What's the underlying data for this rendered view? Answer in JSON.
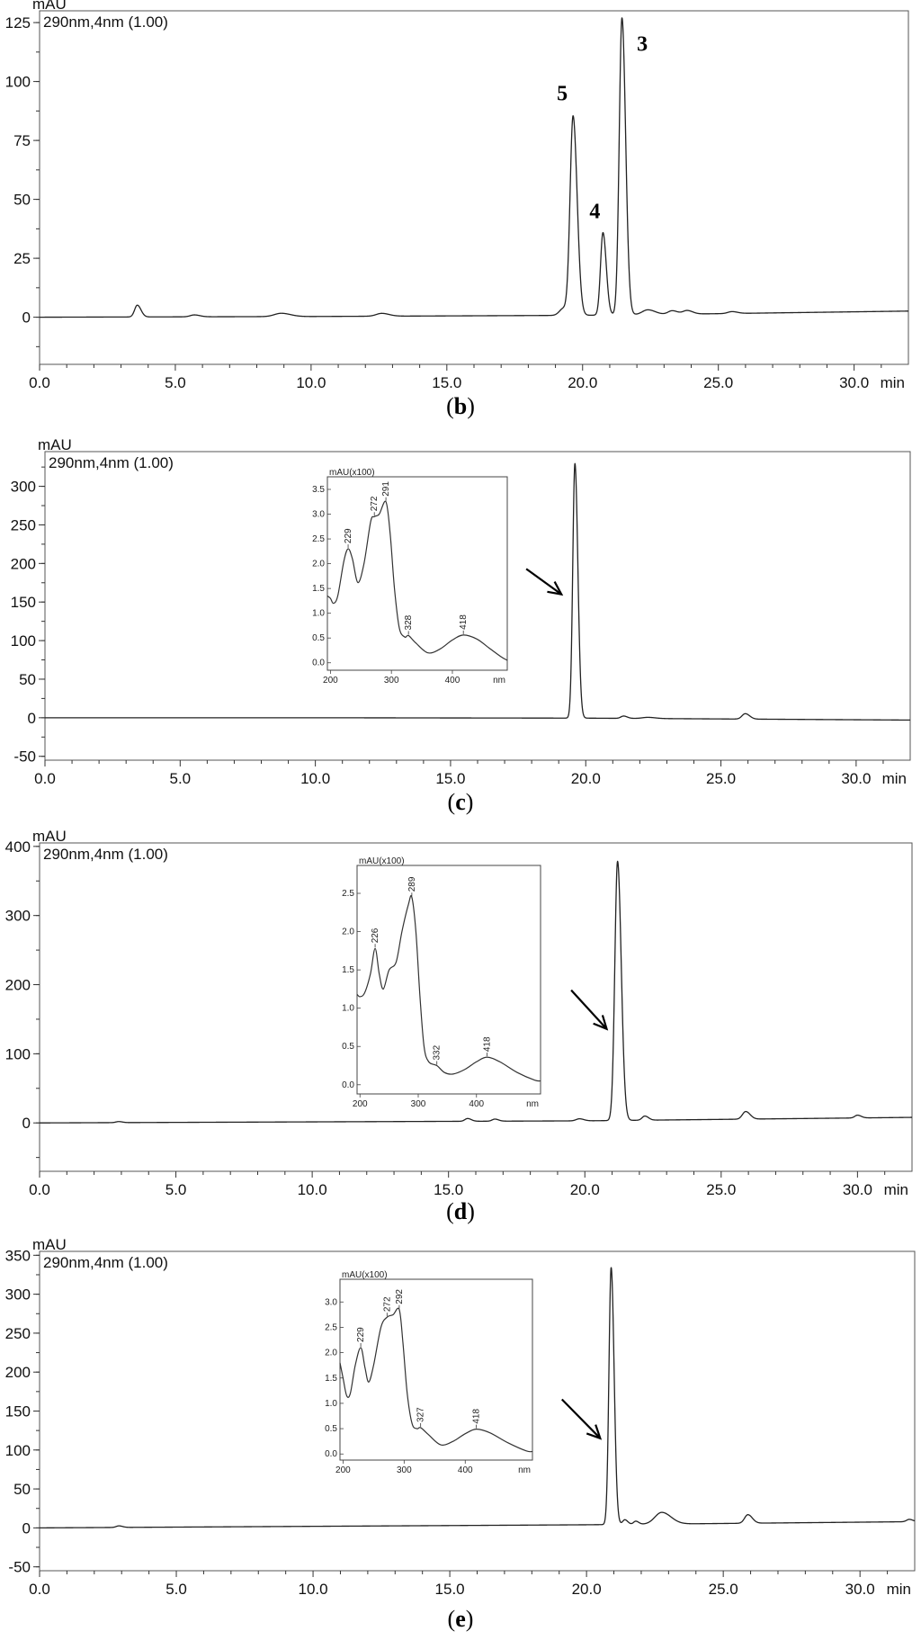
{
  "chart_data": [
    {
      "panel": "b",
      "type": "line",
      "y_unit": "mAU",
      "x_unit": "min",
      "channel": "290nm,4nm (1.00)",
      "xlim": [
        0,
        32
      ],
      "ylim": [
        -20,
        130
      ],
      "xticks": [
        "0.0",
        "5.0",
        "10.0",
        "15.0",
        "20.0",
        "25.0",
        "30.0"
      ],
      "yticks": [
        "0",
        "25",
        "50",
        "75",
        "100",
        "125"
      ],
      "baseline": [
        [
          0,
          0
        ],
        [
          10,
          0.3
        ],
        [
          20,
          0.8
        ],
        [
          25,
          1.5
        ],
        [
          32,
          2.6
        ]
      ],
      "peaks": [
        {
          "rt": 3.6,
          "height": 5,
          "width": 0.1
        },
        {
          "rt": 5.7,
          "height": 0.8,
          "width": 0.15
        },
        {
          "rt": 8.9,
          "height": 1.4,
          "width": 0.25
        },
        {
          "rt": 12.6,
          "height": 1.2,
          "width": 0.2
        },
        {
          "rt": 19.3,
          "height": 3,
          "width": 0.15
        },
        {
          "rt": 19.65,
          "height": 84,
          "width": 0.11
        },
        {
          "rt": 20.75,
          "height": 35,
          "width": 0.09
        },
        {
          "rt": 21.45,
          "height": 126,
          "width": 0.1
        },
        {
          "rt": 22.4,
          "height": 2,
          "width": 0.2
        },
        {
          "rt": 23.3,
          "height": 1.5,
          "width": 0.15
        },
        {
          "rt": 23.85,
          "height": 1.5,
          "width": 0.15
        },
        {
          "rt": 25.5,
          "height": 0.8,
          "width": 0.15
        }
      ],
      "peak_labels": [
        {
          "text": "5",
          "x": 19.25,
          "y": 92
        },
        {
          "text": "4",
          "x": 20.45,
          "y": 42
        },
        {
          "text": "3",
          "x": 22.2,
          "y": 113
        }
      ],
      "caption": "b",
      "arrow": null,
      "inset": null
    },
    {
      "panel": "c",
      "type": "line",
      "y_unit": "mAU",
      "x_unit": "min",
      "channel": "290nm,4nm (1.00)",
      "xlim": [
        0,
        32
      ],
      "ylim": [
        -55,
        345
      ],
      "xticks": [
        "0.0",
        "5.0",
        "10.0",
        "15.0",
        "20.0",
        "25.0",
        "30.0"
      ],
      "yticks": [
        "-50",
        "0",
        "50",
        "100",
        "150",
        "200",
        "250",
        "300"
      ],
      "baseline": [
        [
          0,
          0
        ],
        [
          10,
          0
        ],
        [
          20,
          -0.5
        ],
        [
          32,
          -3
        ]
      ],
      "peaks": [
        {
          "rt": 19.6,
          "height": 330,
          "width": 0.08
        },
        {
          "rt": 21.4,
          "height": 3,
          "width": 0.1
        },
        {
          "rt": 22.3,
          "height": 1.5,
          "width": 0.2
        },
        {
          "rt": 25.9,
          "height": 7,
          "width": 0.12
        }
      ],
      "peak_labels": [],
      "caption": "c",
      "arrow": {
        "tip": [
          19.1,
          160
        ],
        "tail": [
          17.8,
          193
        ]
      },
      "inset": {
        "y_label": "mAU(x100)",
        "x_unit": "nm",
        "xlim": [
          195,
          490
        ],
        "ylim": [
          -0.15,
          3.5
        ],
        "xticks": [
          "200",
          "300",
          "400"
        ],
        "yticks": [
          "0.0",
          "0.5",
          "1.0",
          "1.5",
          "2.0",
          "2.5",
          "3.0",
          "3.5"
        ],
        "spectrum": [
          [
            195,
            1.35
          ],
          [
            200,
            1.3
          ],
          [
            205,
            1.2
          ],
          [
            212,
            1.35
          ],
          [
            222,
            2.05
          ],
          [
            229,
            2.3
          ],
          [
            236,
            2.1
          ],
          [
            245,
            1.62
          ],
          [
            255,
            2.0
          ],
          [
            266,
            2.85
          ],
          [
            272,
            2.95
          ],
          [
            280,
            3.0
          ],
          [
            291,
            3.25
          ],
          [
            298,
            2.6
          ],
          [
            305,
            1.5
          ],
          [
            313,
            0.7
          ],
          [
            322,
            0.52
          ],
          [
            328,
            0.55
          ],
          [
            340,
            0.4
          ],
          [
            360,
            0.2
          ],
          [
            380,
            0.28
          ],
          [
            400,
            0.46
          ],
          [
            418,
            0.56
          ],
          [
            440,
            0.48
          ],
          [
            460,
            0.3
          ],
          [
            480,
            0.12
          ],
          [
            490,
            0.05
          ]
        ],
        "peak_marks": [
          "229",
          "272",
          "291",
          "328",
          "418"
        ]
      }
    },
    {
      "panel": "d",
      "type": "line",
      "y_unit": "mAU",
      "x_unit": "min",
      "channel": "290nm,4nm (1.00)",
      "xlim": [
        0,
        32
      ],
      "ylim": [
        -70,
        405
      ],
      "xticks": [
        "0.0",
        "5.0",
        "10.0",
        "15.0",
        "20.0",
        "25.0",
        "30.0"
      ],
      "yticks": [
        "0",
        "100",
        "200",
        "300",
        "400"
      ],
      "baseline": [
        [
          0,
          0
        ],
        [
          10,
          1.5
        ],
        [
          20,
          3
        ],
        [
          32,
          8
        ]
      ],
      "peaks": [
        {
          "rt": 2.9,
          "height": 1.5,
          "width": 0.1
        },
        {
          "rt": 15.7,
          "height": 4,
          "width": 0.1
        },
        {
          "rt": 16.7,
          "height": 3,
          "width": 0.1
        },
        {
          "rt": 19.8,
          "height": 3,
          "width": 0.12
        },
        {
          "rt": 21.2,
          "height": 375,
          "width": 0.1
        },
        {
          "rt": 22.2,
          "height": 6,
          "width": 0.1
        },
        {
          "rt": 25.9,
          "height": 11,
          "width": 0.12
        },
        {
          "rt": 30.0,
          "height": 4,
          "width": 0.1
        }
      ],
      "peak_labels": [],
      "caption": "d",
      "arrow": {
        "tip": [
          20.8,
          136
        ],
        "tail": [
          19.5,
          192
        ]
      },
      "inset": {
        "y_label": "mAU(x100)",
        "x_unit": "nm",
        "xlim": [
          195,
          510
        ],
        "ylim": [
          -0.12,
          2.7
        ],
        "xticks": [
          "200",
          "300",
          "400"
        ],
        "yticks": [
          "0.0",
          "0.5",
          "1.0",
          "1.5",
          "2.0",
          "2.5"
        ],
        "spectrum": [
          [
            195,
            1.18
          ],
          [
            200,
            1.15
          ],
          [
            208,
            1.2
          ],
          [
            218,
            1.45
          ],
          [
            226,
            1.78
          ],
          [
            233,
            1.45
          ],
          [
            240,
            1.25
          ],
          [
            250,
            1.5
          ],
          [
            262,
            1.6
          ],
          [
            272,
            2.0
          ],
          [
            283,
            2.35
          ],
          [
            289,
            2.45
          ],
          [
            296,
            2.0
          ],
          [
            303,
            1.15
          ],
          [
            310,
            0.5
          ],
          [
            318,
            0.3
          ],
          [
            332,
            0.25
          ],
          [
            345,
            0.16
          ],
          [
            360,
            0.14
          ],
          [
            380,
            0.2
          ],
          [
            400,
            0.3
          ],
          [
            418,
            0.36
          ],
          [
            440,
            0.3
          ],
          [
            470,
            0.16
          ],
          [
            500,
            0.06
          ],
          [
            510,
            0.05
          ]
        ],
        "peak_marks": [
          "226",
          "289",
          "332",
          "418"
        ]
      }
    },
    {
      "panel": "e",
      "type": "line",
      "y_unit": "mAU",
      "x_unit": "min",
      "channel": "290nm,4nm (1.00)",
      "xlim": [
        0,
        32
      ],
      "ylim": [
        -55,
        355
      ],
      "xticks": [
        "0.0",
        "5.0",
        "10.0",
        "15.0",
        "20.0",
        "25.0",
        "30.0"
      ],
      "yticks": [
        "-50",
        "0",
        "50",
        "100",
        "150",
        "200",
        "250",
        "300",
        "350"
      ],
      "baseline": [
        [
          0,
          0
        ],
        [
          10,
          2
        ],
        [
          20,
          4
        ],
        [
          32,
          8
        ]
      ],
      "peaks": [
        {
          "rt": 2.9,
          "height": 2,
          "width": 0.1
        },
        {
          "rt": 20.9,
          "height": 330,
          "width": 0.08
        },
        {
          "rt": 21.4,
          "height": 6,
          "width": 0.08
        },
        {
          "rt": 21.8,
          "height": 4,
          "width": 0.08
        },
        {
          "rt": 22.75,
          "height": 15,
          "width": 0.25
        },
        {
          "rt": 25.9,
          "height": 11,
          "width": 0.12
        },
        {
          "rt": 31.8,
          "height": 3,
          "width": 0.1
        }
      ],
      "peak_labels": [],
      "caption": "e",
      "arrow": {
        "tip": [
          20.5,
          115
        ],
        "tail": [
          19.1,
          165
        ]
      },
      "inset": {
        "y_label": "mAU(x100)",
        "x_unit": "nm",
        "xlim": [
          195,
          510
        ],
        "ylim": [
          -0.12,
          3.2
        ],
        "xticks": [
          "200",
          "300",
          "400"
        ],
        "yticks": [
          "0.0",
          "0.5",
          "1.0",
          "1.5",
          "2.0",
          "2.5",
          "3.0"
        ],
        "spectrum": [
          [
            195,
            1.8
          ],
          [
            200,
            1.5
          ],
          [
            206,
            1.15
          ],
          [
            212,
            1.2
          ],
          [
            220,
            1.75
          ],
          [
            229,
            2.1
          ],
          [
            236,
            1.7
          ],
          [
            242,
            1.42
          ],
          [
            250,
            1.75
          ],
          [
            262,
            2.5
          ],
          [
            272,
            2.7
          ],
          [
            282,
            2.75
          ],
          [
            292,
            2.85
          ],
          [
            298,
            2.2
          ],
          [
            305,
            1.2
          ],
          [
            313,
            0.6
          ],
          [
            321,
            0.5
          ],
          [
            327,
            0.52
          ],
          [
            340,
            0.38
          ],
          [
            360,
            0.18
          ],
          [
            380,
            0.25
          ],
          [
            400,
            0.4
          ],
          [
            418,
            0.49
          ],
          [
            440,
            0.42
          ],
          [
            470,
            0.22
          ],
          [
            500,
            0.06
          ],
          [
            510,
            0.05
          ]
        ],
        "peak_marks": [
          "229",
          "272",
          "292",
          "327",
          "418"
        ]
      }
    }
  ]
}
